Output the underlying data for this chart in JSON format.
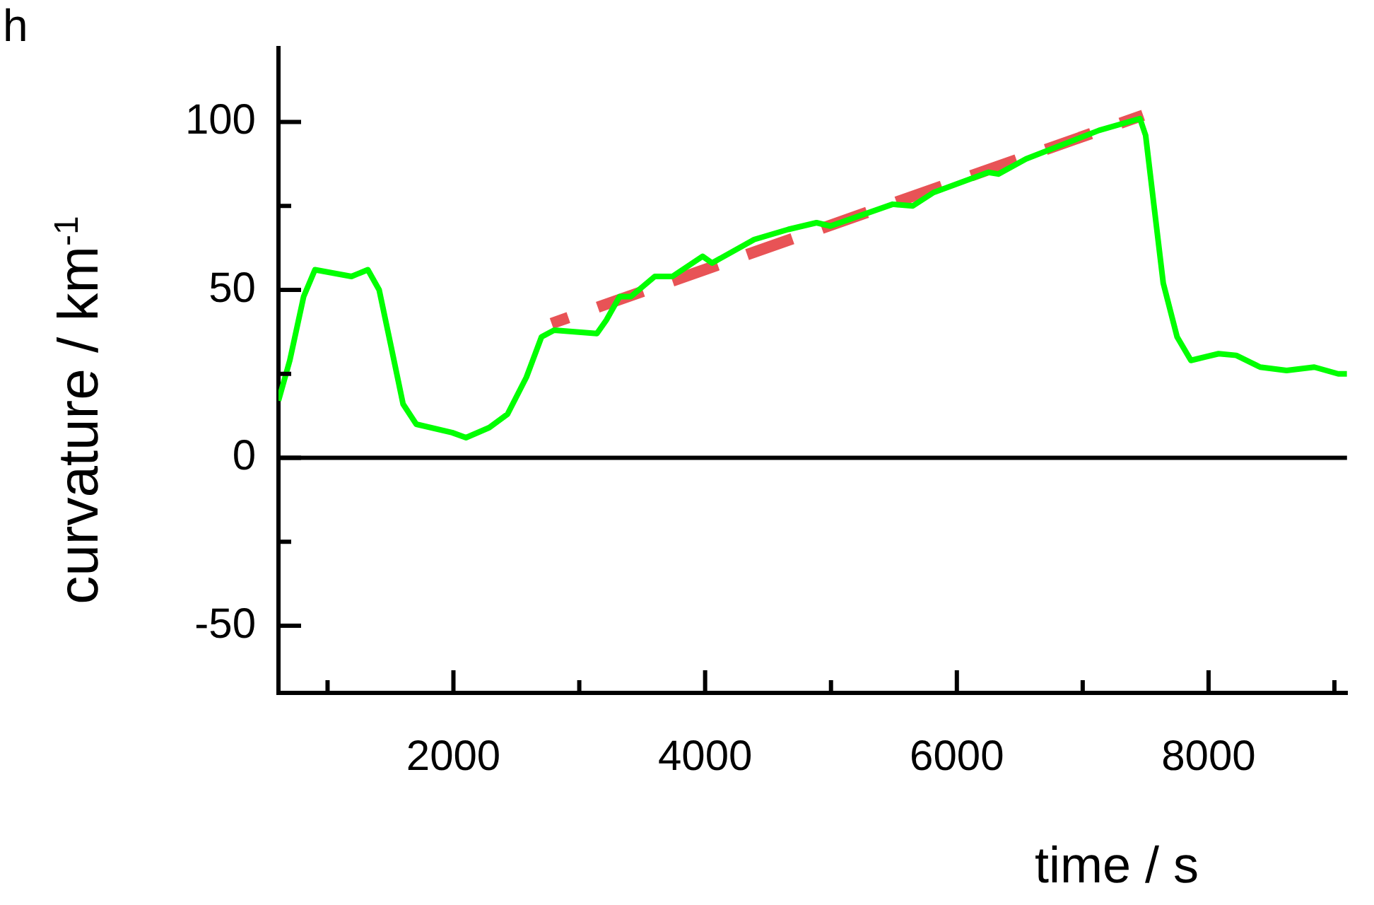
{
  "chart_data": {
    "type": "line",
    "annotations": [
      "h"
    ],
    "xlabel": "time / s",
    "ylabel": "curvature / km$^{-1}$",
    "xlim": [
      610,
      9100
    ],
    "ylim": [
      -70,
      122
    ],
    "xticks": [
      {
        "value": 1000,
        "label": null
      },
      2000,
      {
        "value": 3000,
        "label": null
      },
      4000,
      {
        "value": 5000,
        "label": null
      },
      6000,
      {
        "value": 7000,
        "label": null
      },
      8000,
      {
        "value": 9000,
        "label": null
      }
    ],
    "yticks": [
      -50,
      {
        "value": -25,
        "label": null
      },
      0,
      {
        "value": 25,
        "label": null
      },
      50,
      {
        "value": 75,
        "label": null
      },
      100
    ],
    "legend": false,
    "marker": "none",
    "ref_lines": [
      {
        "axis": "y",
        "value": 0,
        "color": "#000000"
      }
    ],
    "series": [
      {
        "color": "#00ff00",
        "line_style": "solid",
        "x": [
          610,
          700,
          810,
          900,
          1190,
          1320,
          1410,
          1500,
          1600,
          1705,
          1990,
          2100,
          2285,
          2430,
          2580,
          2700,
          2800,
          3140,
          3215,
          3320,
          3410,
          3600,
          3740,
          3980,
          4055,
          4390,
          4660,
          4885,
          4995,
          5490,
          5650,
          5815,
          6250,
          6330,
          6550,
          7130,
          7455,
          7500,
          7565,
          7640,
          7750,
          7860,
          8080,
          8220,
          8410,
          8620,
          8840,
          9030,
          9100
        ],
        "values": [
          17,
          29,
          48,
          56,
          54,
          56,
          50,
          34,
          16,
          10,
          7.5,
          6,
          9,
          13,
          24,
          36,
          38,
          37,
          41,
          48,
          48,
          54,
          54,
          60,
          58,
          65,
          68,
          70,
          69,
          75.5,
          75,
          79,
          85,
          84.5,
          89,
          97.5,
          101,
          96,
          75.5,
          52,
          36,
          29,
          31,
          30.5,
          27,
          26,
          27,
          25,
          25
        ]
      },
      {
        "color": "#e85356",
        "line_style": "dashed",
        "x": [
          2780,
          7480
        ],
        "values": [
          40,
          102
        ]
      }
    ]
  }
}
